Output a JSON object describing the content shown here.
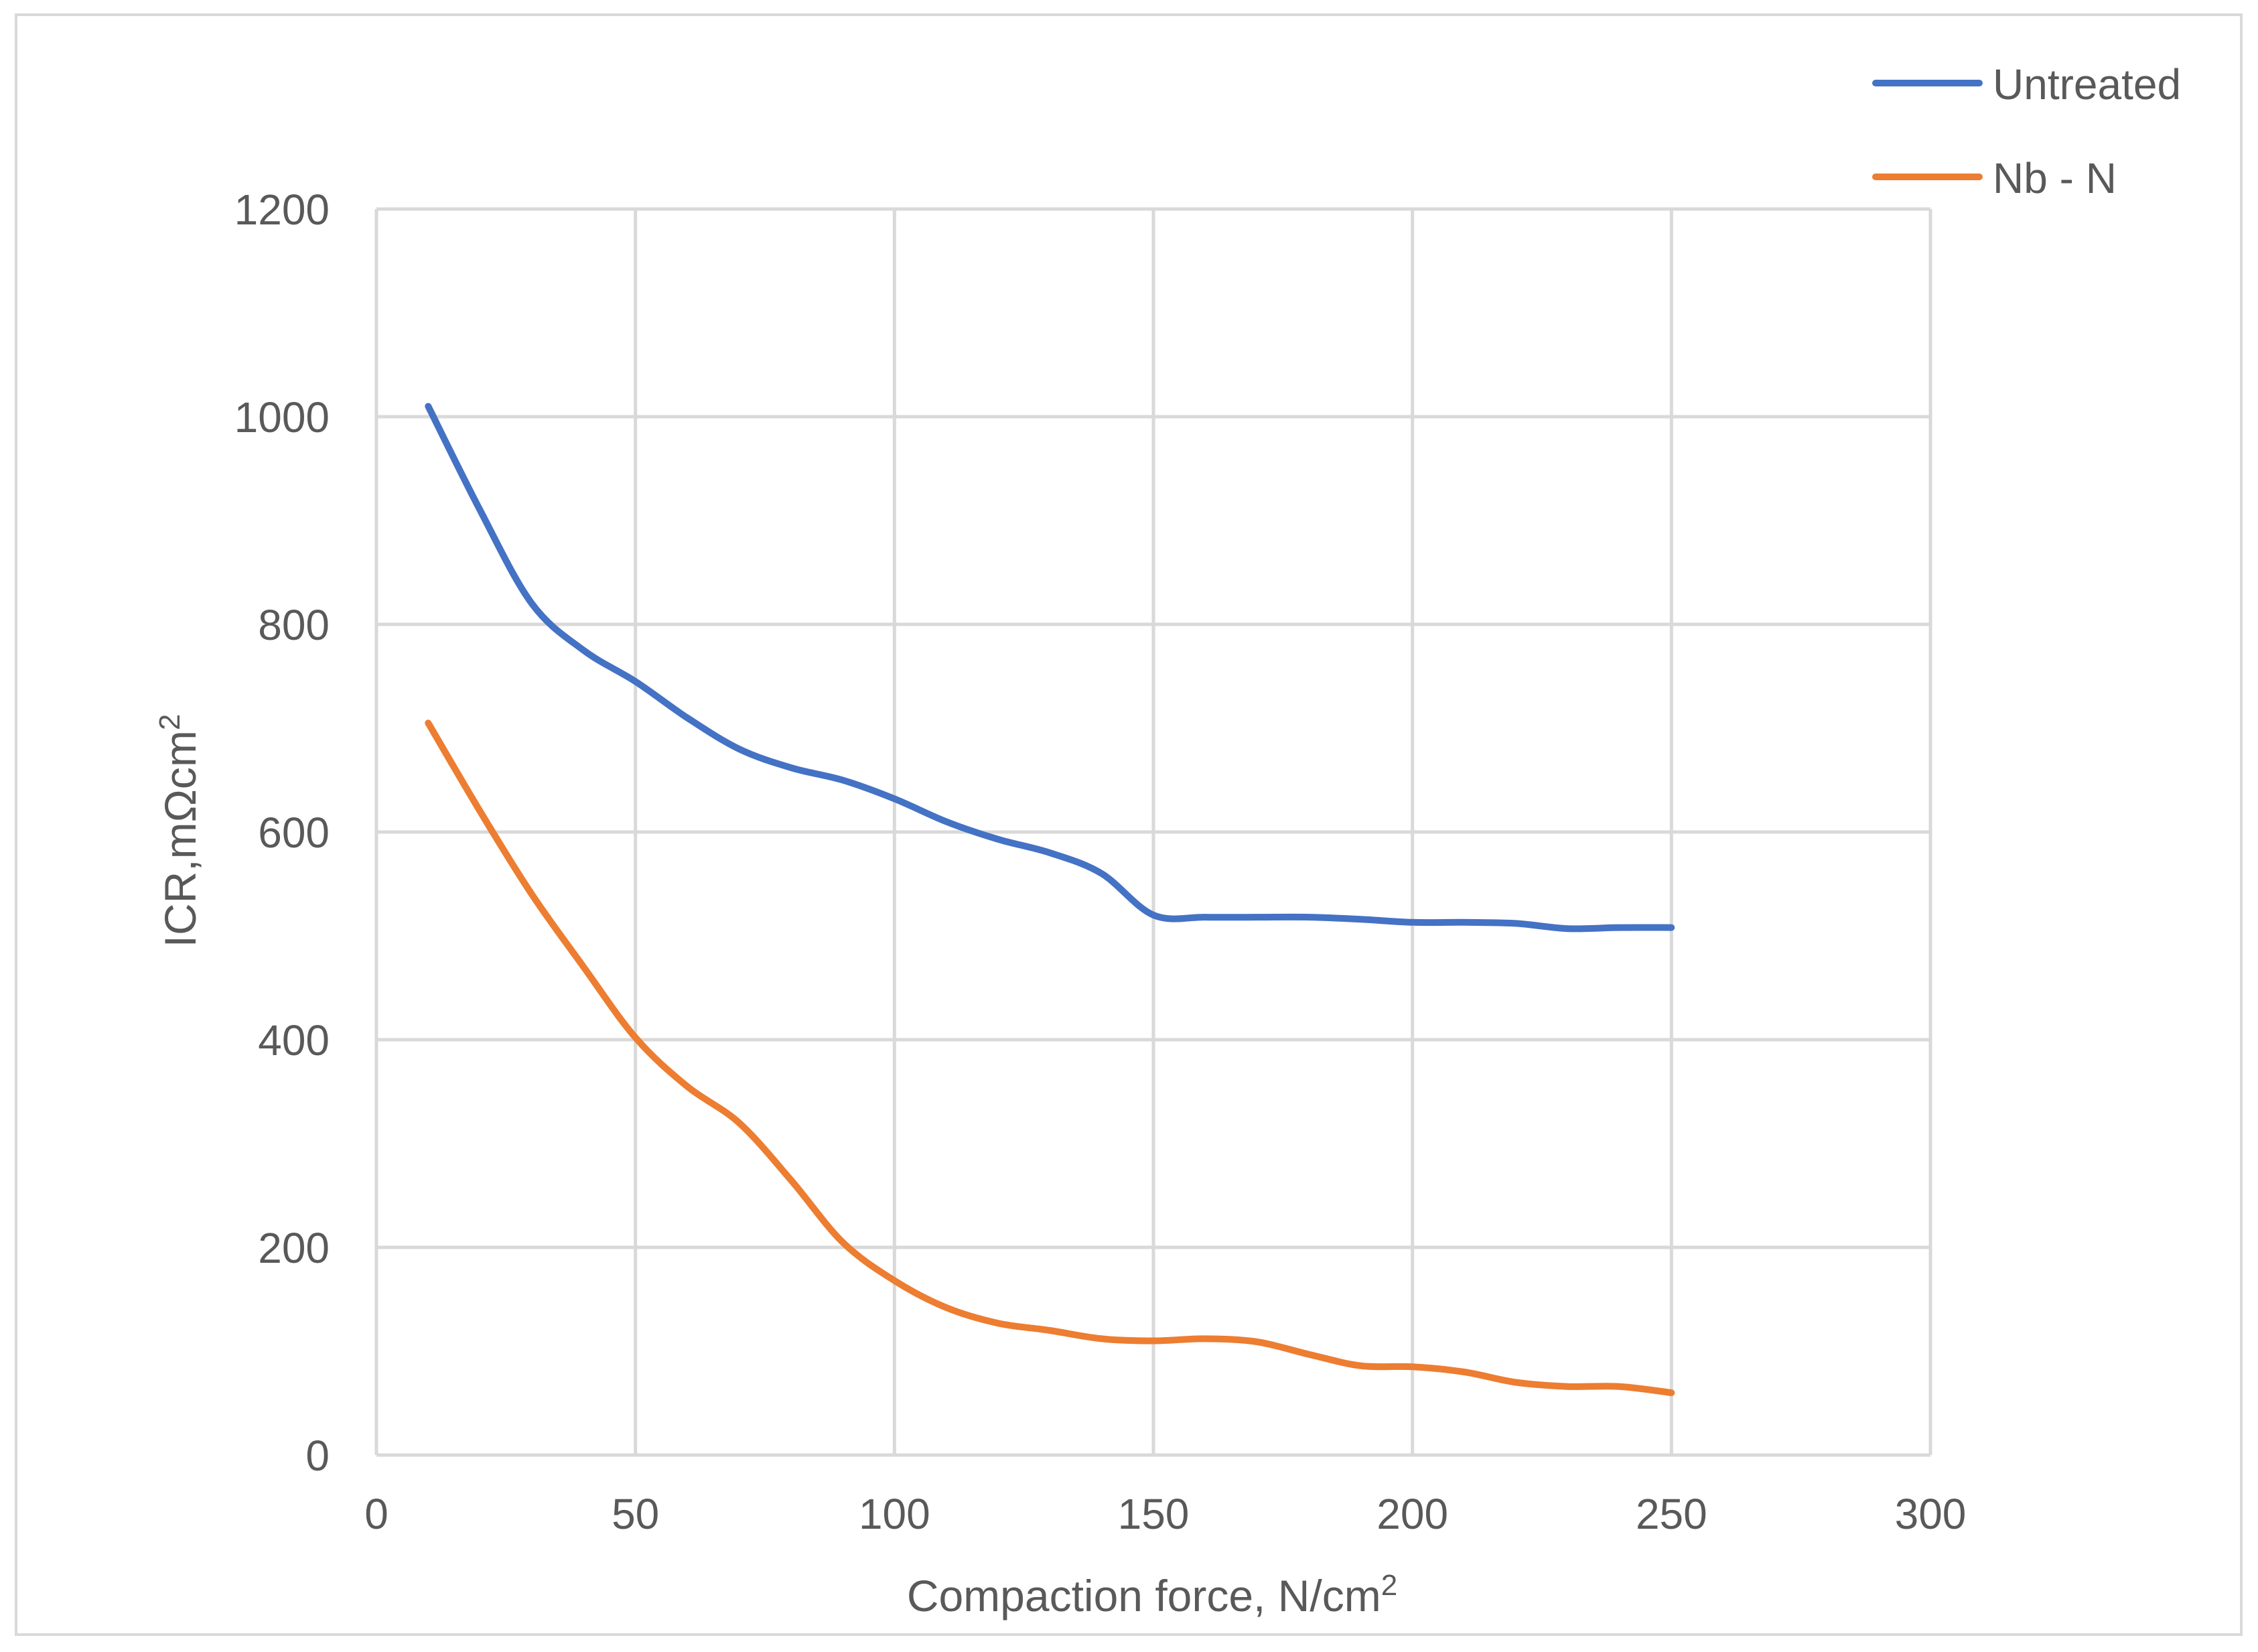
{
  "chart_data": {
    "type": "line",
    "title": "",
    "xlabel": "Compaction force, N/cm",
    "xlabel_sup": "2",
    "ylabel": "ICR,mΩcm",
    "ylabel_sup": "2",
    "xlim": [
      0,
      300
    ],
    "ylim": [
      0,
      1200
    ],
    "xticks": [
      0,
      50,
      100,
      150,
      200,
      250,
      300
    ],
    "yticks": [
      0,
      200,
      400,
      600,
      800,
      1000,
      1200
    ],
    "grid": true,
    "legend_position": "top-right",
    "series": [
      {
        "name": "Untreated",
        "color": "#4472C4",
        "x": [
          10,
          20,
          30,
          40,
          50,
          60,
          70,
          80,
          90,
          100,
          110,
          120,
          130,
          140,
          150,
          160,
          170,
          180,
          190,
          200,
          210,
          220,
          230,
          240,
          250
        ],
        "y": [
          1010,
          910,
          820,
          775,
          745,
          710,
          680,
          662,
          650,
          632,
          610,
          593,
          580,
          560,
          520,
          518,
          518,
          518,
          516,
          513,
          513,
          512,
          507,
          508,
          508
        ]
      },
      {
        "name": "Nb - N",
        "color": "#ED7D31",
        "x": [
          10,
          20,
          30,
          40,
          50,
          60,
          70,
          80,
          90,
          100,
          110,
          120,
          130,
          140,
          150,
          160,
          170,
          180,
          190,
          200,
          210,
          220,
          230,
          240,
          250
        ],
        "y": [
          705,
          620,
          540,
          470,
          402,
          355,
          320,
          265,
          205,
          168,
          142,
          127,
          120,
          112,
          110,
          112,
          109,
          97,
          86,
          85,
          80,
          70,
          66,
          66,
          60
        ]
      }
    ]
  }
}
